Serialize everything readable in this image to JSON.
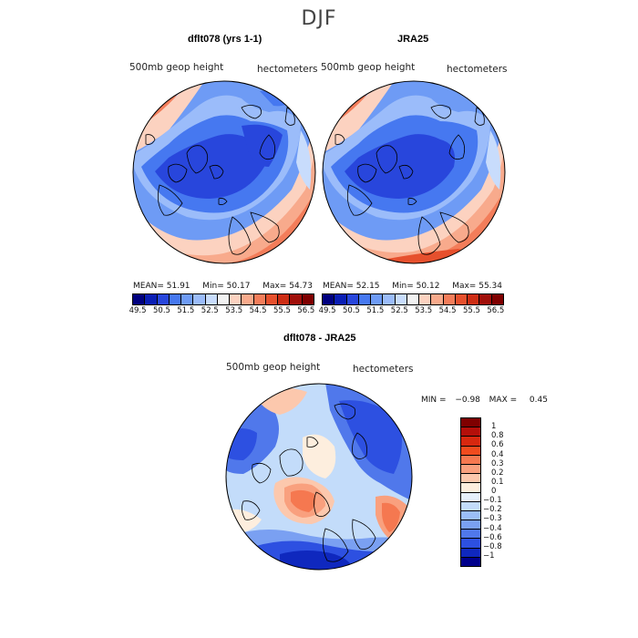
{
  "figure": {
    "title": "DJF"
  },
  "panel_left": {
    "title": "dflt078 (yrs 1-1)",
    "variable": "500mb geop height",
    "units": "hectometers",
    "stats": {
      "mean_label": "MEAN=",
      "mean": "51.91",
      "min_label": "Min=",
      "min": "50.17",
      "max_label": "Max=",
      "max": "54.73"
    }
  },
  "panel_right": {
    "title": "JRA25",
    "variable": "500mb geop height",
    "units": "hectometers",
    "stats": {
      "mean_label": "MEAN=",
      "mean": "52.15",
      "min_label": "Min=",
      "min": "50.12",
      "max_label": "Max=",
      "max": "55.34"
    }
  },
  "panel_diff": {
    "title": "dflt078 - JRA25",
    "variable": "500mb geop height",
    "units": "hectometers",
    "stats": {
      "min_label": "MIN =",
      "min": "−0.98",
      "max_label": "MAX =",
      "max": "0.45"
    }
  },
  "colorbar_top": {
    "colors": [
      "#00007f",
      "#0a1eb4",
      "#2846dc",
      "#4678f0",
      "#6e9bf5",
      "#9bbcfa",
      "#c8dcfc",
      "#f2f2f2",
      "#fcd2c0",
      "#f8aa8c",
      "#f37d5a",
      "#e6502d",
      "#cd2d14",
      "#a00f0a",
      "#7f0000"
    ],
    "labels": [
      "49.5",
      "50.5",
      "51.5",
      "52.5",
      "53.5",
      "54.5",
      "55.5",
      "56.5"
    ]
  },
  "colorbar_diff": {
    "colors": [
      "#7f0000",
      "#b40f0a",
      "#d7280f",
      "#f04b1e",
      "#f57850",
      "#f9a07e",
      "#fcc8ad",
      "#fdeede",
      "#e6f0fc",
      "#c3dcfa",
      "#9bbef7",
      "#7aa0f2",
      "#5078eb",
      "#2d50e1",
      "#0f28be",
      "#00008c"
    ],
    "labels": [
      "1",
      "0.8",
      "0.6",
      "0.4",
      "0.3",
      "0.2",
      "0.1",
      "0",
      "−0.1",
      "−0.2",
      "−0.3",
      "−0.4",
      "−0.6",
      "−0.8",
      "−1"
    ]
  }
}
